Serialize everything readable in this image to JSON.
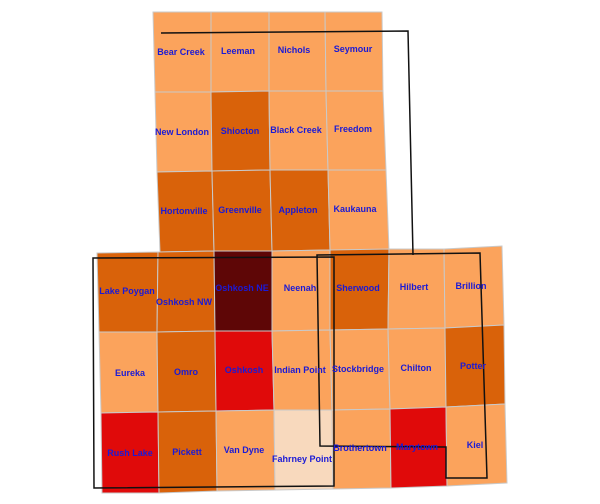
{
  "legend_colors": {
    "class1": "#f8d9bd",
    "class2": "#fba35c",
    "class3": "#d9620a",
    "class4": "#e00a0a",
    "class5": "#5e0606"
  },
  "outline_color": "#111111",
  "label_color": "#1a1ad6",
  "cells": [
    {
      "name": "Bear Creek",
      "cls": "class2"
    },
    {
      "name": "Leeman",
      "cls": "class2"
    },
    {
      "name": "Nichols",
      "cls": "class2"
    },
    {
      "name": "Seymour",
      "cls": "class2"
    },
    {
      "name": "New London",
      "cls": "class2"
    },
    {
      "name": "Shiocton",
      "cls": "class3"
    },
    {
      "name": "Black Creek",
      "cls": "class2"
    },
    {
      "name": "Freedom",
      "cls": "class2"
    },
    {
      "name": "Hortonville",
      "cls": "class3"
    },
    {
      "name": "Greenville",
      "cls": "class3"
    },
    {
      "name": "Appleton",
      "cls": "class3"
    },
    {
      "name": "Kaukauna",
      "cls": "class2"
    },
    {
      "name": "Lake Poygan",
      "cls": "class3"
    },
    {
      "name": "Oshkosh NW",
      "cls": "class3"
    },
    {
      "name": "Oshkosh NE",
      "cls": "class5"
    },
    {
      "name": "Neenah",
      "cls": "class2"
    },
    {
      "name": "Sherwood",
      "cls": "class3"
    },
    {
      "name": "Hilbert",
      "cls": "class2"
    },
    {
      "name": "Brillion",
      "cls": "class2"
    },
    {
      "name": "Eureka",
      "cls": "class2"
    },
    {
      "name": "Omro",
      "cls": "class3"
    },
    {
      "name": "Oshkosh",
      "cls": "class4"
    },
    {
      "name": "Indian Point",
      "cls": "class2"
    },
    {
      "name": "Stockbridge",
      "cls": "class2"
    },
    {
      "name": "Chilton",
      "cls": "class2"
    },
    {
      "name": "Potter",
      "cls": "class3"
    },
    {
      "name": "Rush Lake",
      "cls": "class4"
    },
    {
      "name": "Pickett",
      "cls": "class3"
    },
    {
      "name": "Van Dyne",
      "cls": "class2"
    },
    {
      "name": "Fahrney Point",
      "cls": "class1"
    },
    {
      "name": "Brothertown",
      "cls": "class2"
    },
    {
      "name": "Marytown",
      "cls": "class4"
    },
    {
      "name": "Kiel",
      "cls": "class2"
    }
  ]
}
